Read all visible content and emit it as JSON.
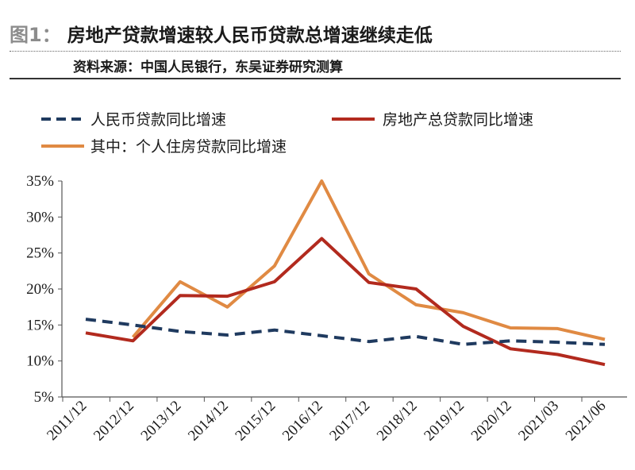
{
  "header": {
    "figure_label": "图1：",
    "title": "房地产贷款增速较人民币贷款总增速继续走低",
    "source": "资料来源：中国人民银行，东吴证券研究测算"
  },
  "colors": {
    "series1": "#1f3a5f",
    "series2": "#b22a1e",
    "series3": "#e08a43",
    "axis": "#555555"
  },
  "chart_data": {
    "type": "line",
    "title": "",
    "xlabel": "",
    "ylabel": "",
    "ylim": [
      5,
      35
    ],
    "y_ticks": [
      "35%",
      "30%",
      "25%",
      "20%",
      "15%",
      "10%",
      "5%"
    ],
    "legend_placement": "top",
    "grid": false,
    "x": [
      "2011/12",
      "2012/12",
      "2013/12",
      "2014/12",
      "2015/12",
      "2016/12",
      "2017/12",
      "2018/12",
      "2019/12",
      "2020/12",
      "2021/03",
      "2021/06"
    ],
    "series": [
      {
        "name": "人民币贷款同比增速",
        "style": "dashed",
        "values": [
          15.8,
          15.0,
          14.1,
          13.6,
          14.3,
          13.5,
          12.7,
          13.4,
          12.3,
          12.8,
          12.6,
          12.3
        ]
      },
      {
        "name": "房地产总贷款同比增速",
        "style": "solid",
        "values": [
          13.9,
          12.8,
          19.1,
          19.0,
          21.0,
          27.0,
          20.9,
          20.0,
          14.8,
          11.7,
          10.9,
          9.5
        ]
      },
      {
        "name": "其中：个人住房贷款同比增速",
        "style": "solid",
        "values": [
          null,
          13.3,
          21.0,
          17.5,
          23.2,
          35.0,
          22.1,
          17.8,
          16.7,
          14.6,
          14.5,
          13.0
        ]
      }
    ]
  }
}
